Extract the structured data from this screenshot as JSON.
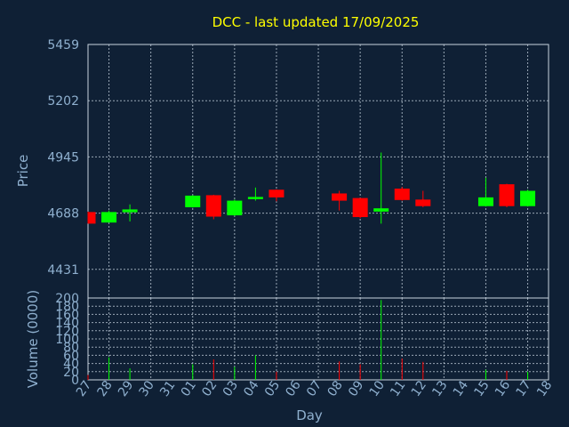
{
  "chart_data": {
    "type": "candlestick",
    "title": "DCC - last updated 17/09/2025",
    "xlabel": "Day",
    "ylabel_price": "Price",
    "ylabel_volume": "Volume (0000)",
    "price_ylim": [
      4300,
      5459
    ],
    "price_ticks": [
      4431,
      4688,
      4945,
      5202,
      5459
    ],
    "volume_ylim": [
      0,
      200
    ],
    "volume_ticks": [
      0,
      20,
      40,
      60,
      80,
      100,
      120,
      140,
      160,
      180,
      200
    ],
    "x_tick_labels": [
      "27",
      "28",
      "29",
      "30",
      "31",
      "01",
      "02",
      "03",
      "04",
      "05",
      "06",
      "07",
      "08",
      "09",
      "10",
      "11",
      "12",
      "13",
      "14",
      "15",
      "16",
      "17",
      "18"
    ],
    "grid": true,
    "colors": {
      "up": "#00ff00",
      "down": "#ff0000",
      "title": "#ffff00",
      "axis": "#8fb0cf",
      "background": "#0f2035"
    },
    "candles": [
      {
        "day": "27",
        "open": 4693,
        "high": 4695,
        "low": 4640,
        "close": 4640,
        "volume": 12
      },
      {
        "day": "28",
        "open": 4645,
        "high": 4700,
        "low": 4645,
        "close": 4693,
        "volume": 55
      },
      {
        "day": "29",
        "open": 4692,
        "high": 4728,
        "low": 4650,
        "close": 4705,
        "volume": 28
      },
      {
        "day": "01",
        "open": 4715,
        "high": 4770,
        "low": 4713,
        "close": 4768,
        "volume": 38
      },
      {
        "day": "02",
        "open": 4770,
        "high": 4772,
        "low": 4660,
        "close": 4672,
        "volume": 50
      },
      {
        "day": "03",
        "open": 4678,
        "high": 4750,
        "low": 4675,
        "close": 4745,
        "volume": 32
      },
      {
        "day": "04",
        "open": 4752,
        "high": 4805,
        "low": 4745,
        "close": 4762,
        "volume": 60
      },
      {
        "day": "05",
        "open": 4795,
        "high": 4797,
        "low": 4742,
        "close": 4760,
        "volume": 20
      },
      {
        "day": "08",
        "open": 4778,
        "high": 4790,
        "low": 4700,
        "close": 4745,
        "volume": 45
      },
      {
        "day": "09",
        "open": 4757,
        "high": 4758,
        "low": 4665,
        "close": 4670,
        "volume": 38
      },
      {
        "day": "10",
        "open": 4695,
        "high": 4965,
        "low": 4640,
        "close": 4710,
        "volume": 195
      },
      {
        "day": "11",
        "open": 4800,
        "high": 4808,
        "low": 4745,
        "close": 4748,
        "volume": 52
      },
      {
        "day": "12",
        "open": 4750,
        "high": 4790,
        "low": 4715,
        "close": 4720,
        "volume": 44
      },
      {
        "day": "15",
        "open": 4720,
        "high": 4850,
        "low": 4718,
        "close": 4760,
        "volume": 25
      },
      {
        "day": "16",
        "open": 4820,
        "high": 4822,
        "low": 4715,
        "close": 4720,
        "volume": 22
      },
      {
        "day": "17",
        "open": 4720,
        "high": 4795,
        "low": 4718,
        "close": 4790,
        "volume": 20
      }
    ]
  }
}
